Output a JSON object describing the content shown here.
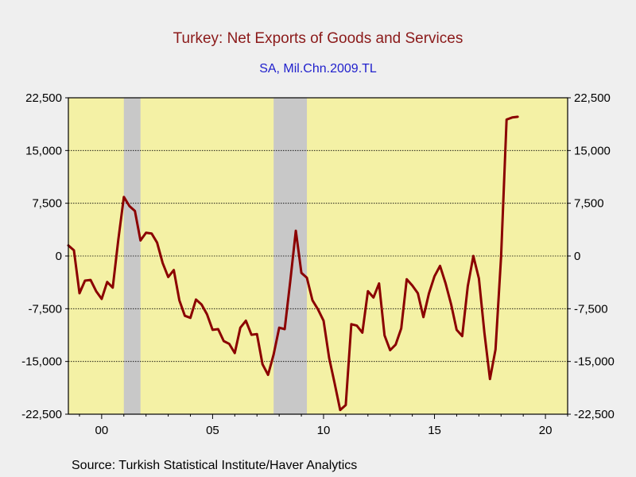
{
  "chart_data": {
    "type": "line",
    "title": "Turkey: Net Exports of Goods and Services",
    "subtitle": "SA, Mil.Chn.2009.TL",
    "source": "Source:  Turkish Statistical Institute/Haver Analytics",
    "ylim": [
      -22500,
      22500
    ],
    "y_ticks": [
      22500,
      15000,
      7500,
      0,
      -7500,
      -15000,
      -22500
    ],
    "y_tick_labels": [
      "22,500",
      "15,000",
      "7,500",
      "0",
      "-7,500",
      "-15,000",
      "-22,500"
    ],
    "xlim": [
      1998.5,
      2021.0
    ],
    "x_ticks": [
      2000,
      2005,
      2010,
      2015,
      2020
    ],
    "x_tick_labels": [
      "00",
      "05",
      "10",
      "15",
      "20"
    ],
    "grid": true,
    "recessions": [
      [
        2001.0,
        2001.75
      ],
      [
        2007.75,
        2009.25
      ]
    ],
    "series": [
      {
        "color": "#8b0000",
        "x": [
          1998.5,
          1998.75,
          1999.0,
          1999.25,
          1999.5,
          1999.75,
          2000.0,
          2000.25,
          2000.5,
          2000.75,
          2001.0,
          2001.25,
          2001.5,
          2001.75,
          2002.0,
          2002.25,
          2002.5,
          2002.75,
          2003.0,
          2003.25,
          2003.5,
          2003.75,
          2004.0,
          2004.25,
          2004.5,
          2004.75,
          2005.0,
          2005.25,
          2005.5,
          2005.75,
          2006.0,
          2006.25,
          2006.5,
          2006.75,
          2007.0,
          2007.25,
          2007.5,
          2007.75,
          2008.0,
          2008.25,
          2008.5,
          2008.75,
          2009.0,
          2009.25,
          2009.5,
          2009.75,
          2010.0,
          2010.25,
          2010.5,
          2010.75,
          2011.0,
          2011.25,
          2011.5,
          2011.75,
          2012.0,
          2012.25,
          2012.5,
          2012.75,
          2013.0,
          2013.25,
          2013.5,
          2013.75,
          2014.0,
          2014.25,
          2014.5,
          2014.75,
          2015.0,
          2015.25,
          2015.5,
          2015.75,
          2016.0,
          2016.25,
          2016.5,
          2016.75,
          2017.0,
          2017.25,
          2017.5,
          2017.75,
          2018.0,
          2018.25,
          2018.5,
          2018.75
        ],
        "y": [
          1500,
          800,
          -5300,
          -3500,
          -3400,
          -5000,
          -6100,
          -3700,
          -4500,
          2300,
          8400,
          7100,
          6400,
          2200,
          3300,
          3200,
          1900,
          -1000,
          -3000,
          -2000,
          -6300,
          -8500,
          -8800,
          -6200,
          -6900,
          -8300,
          -10500,
          -10400,
          -12100,
          -12500,
          -13800,
          -10200,
          -9200,
          -11200,
          -11100,
          -15400,
          -16900,
          -14000,
          -10200,
          -10400,
          -3600,
          3600,
          -2400,
          -3100,
          -6300,
          -7600,
          -9200,
          -14500,
          -18100,
          -21900,
          -21200,
          -9700,
          -9900,
          -10900,
          -5000,
          -5900,
          -3900,
          -11300,
          -13400,
          -12600,
          -10300,
          -3300,
          -4200,
          -5300,
          -8700,
          -5300,
          -2900,
          -1400,
          -3900,
          -6900,
          -10500,
          -11400,
          -4300,
          0,
          -3200,
          -10900,
          -17500,
          -13300,
          -100,
          19400,
          19700,
          19800
        ]
      }
    ]
  }
}
